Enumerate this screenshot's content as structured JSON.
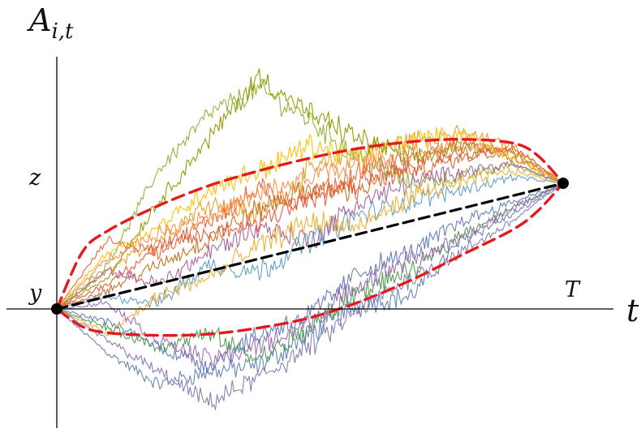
{
  "chart_data": {
    "type": "line",
    "title": "",
    "xlabel": "t",
    "ylabel": "A",
    "ylabel_subscript": "i,t",
    "tick_labels": {
      "x_end": "T",
      "y_start": "y",
      "y_end": "z"
    },
    "xlim": [
      0,
      1
    ],
    "ylim": [
      -0.85,
      2.0
    ],
    "grid": false,
    "legend": "none",
    "start_point": {
      "t": 0,
      "value": 0
    },
    "end_point": {
      "t": 1,
      "value": 1
    },
    "mean_line": {
      "x": [
        0,
        1
      ],
      "y": [
        0,
        1
      ],
      "color": "#000000",
      "style": "dashed"
    },
    "envelope": {
      "color": "#e41a1c",
      "style": "dashed",
      "x": [
        0.0,
        0.05,
        0.1,
        0.2,
        0.3,
        0.4,
        0.5,
        0.6,
        0.7,
        0.8,
        0.9,
        0.95,
        1.0
      ],
      "upper": [
        0.0,
        0.45,
        0.62,
        0.82,
        0.98,
        1.1,
        1.2,
        1.28,
        1.33,
        1.35,
        1.32,
        1.22,
        1.0
      ],
      "lower": [
        0.0,
        -0.14,
        -0.19,
        -0.21,
        -0.2,
        -0.15,
        -0.07,
        0.06,
        0.23,
        0.43,
        0.63,
        0.78,
        1.0
      ]
    },
    "series": [
      {
        "color": "#5e81b5",
        "x": [
          0,
          0.1,
          0.2,
          0.3,
          0.4,
          0.5,
          0.6,
          0.7,
          0.8,
          0.9,
          1
        ],
        "y": [
          0,
          -0.35,
          -0.6,
          -0.5,
          -0.45,
          -0.2,
          0.05,
          0.1,
          0.55,
          0.75,
          1
        ]
      },
      {
        "color": "#e19c24",
        "x": [
          0,
          0.1,
          0.2,
          0.3,
          0.4,
          0.5,
          0.6,
          0.7,
          0.8,
          0.9,
          1
        ],
        "y": [
          0,
          0.3,
          0.55,
          0.85,
          0.75,
          1.1,
          1.25,
          1.35,
          1.4,
          1.3,
          1
        ]
      },
      {
        "color": "#8fb032",
        "x": [
          0,
          0.1,
          0.2,
          0.3,
          0.4,
          0.5,
          0.6,
          0.7,
          0.8,
          0.9,
          1
        ],
        "y": [
          0,
          0.35,
          1.1,
          1.55,
          1.75,
          1.5,
          1.2,
          1.0,
          1.05,
          1.15,
          1
        ]
      },
      {
        "color": "#eb6235",
        "x": [
          0,
          0.1,
          0.2,
          0.3,
          0.4,
          0.5,
          0.6,
          0.7,
          0.8,
          0.9,
          1
        ],
        "y": [
          0,
          0.55,
          0.45,
          0.7,
          0.95,
          0.85,
          1.1,
          1.2,
          1.3,
          1.25,
          1
        ]
      },
      {
        "color": "#8778b3",
        "x": [
          0,
          0.1,
          0.2,
          0.3,
          0.4,
          0.5,
          0.6,
          0.7,
          0.8,
          0.9,
          1
        ],
        "y": [
          0,
          -0.25,
          -0.5,
          -0.75,
          -0.55,
          -0.3,
          0.0,
          0.25,
          0.45,
          0.7,
          1
        ]
      },
      {
        "color": "#c56e1a",
        "x": [
          0,
          0.1,
          0.2,
          0.3,
          0.4,
          0.5,
          0.6,
          0.7,
          0.8,
          0.9,
          1
        ],
        "y": [
          0,
          0.15,
          0.35,
          0.55,
          0.8,
          0.95,
          0.95,
          1.15,
          1.25,
          1.2,
          1
        ]
      },
      {
        "color": "#5d9ec7",
        "x": [
          0,
          0.1,
          0.2,
          0.3,
          0.4,
          0.5,
          0.6,
          0.7,
          0.8,
          0.9,
          1
        ],
        "y": [
          0,
          0.1,
          0.05,
          0.35,
          0.3,
          0.55,
          0.75,
          0.85,
          0.95,
          1.05,
          1
        ]
      },
      {
        "color": "#ffbf00",
        "x": [
          0,
          0.1,
          0.2,
          0.3,
          0.4,
          0.5,
          0.6,
          0.7,
          0.8,
          0.9,
          1
        ],
        "y": [
          0,
          0.45,
          0.65,
          0.95,
          1.1,
          1.3,
          1.2,
          1.35,
          1.4,
          1.2,
          1
        ]
      },
      {
        "color": "#a5609d",
        "x": [
          0,
          0.1,
          0.2,
          0.3,
          0.4,
          0.5,
          0.6,
          0.7,
          0.8,
          0.9,
          1
        ],
        "y": [
          0,
          0.3,
          0.2,
          0.45,
          0.65,
          0.55,
          0.85,
          1.0,
          1.1,
          1.15,
          1
        ]
      },
      {
        "color": "#929600",
        "x": [
          0,
          0.1,
          0.2,
          0.3,
          0.4,
          0.5,
          0.6,
          0.7,
          0.8,
          0.9,
          1
        ],
        "y": [
          0,
          0.25,
          0.85,
          1.35,
          1.85,
          1.55,
          1.35,
          1.2,
          1.3,
          1.25,
          1
        ]
      },
      {
        "color": "#e95536",
        "x": [
          0,
          0.1,
          0.2,
          0.3,
          0.4,
          0.5,
          0.6,
          0.7,
          0.8,
          0.9,
          1
        ],
        "y": [
          0,
          0.2,
          0.5,
          0.6,
          0.7,
          0.9,
          1.0,
          1.1,
          1.2,
          1.3,
          1
        ]
      },
      {
        "color": "#6279b8",
        "x": [
          0,
          0.1,
          0.2,
          0.3,
          0.4,
          0.5,
          0.6,
          0.7,
          0.8,
          0.9,
          1
        ],
        "y": [
          0,
          -0.1,
          -0.3,
          -0.45,
          -0.2,
          -0.05,
          0.3,
          0.45,
          0.7,
          0.85,
          1
        ]
      },
      {
        "color": "#ecae2d",
        "x": [
          0,
          0.1,
          0.2,
          0.3,
          0.4,
          0.5,
          0.6,
          0.7,
          0.8,
          0.9,
          1
        ],
        "y": [
          0,
          -0.2,
          0.1,
          0.25,
          0.5,
          0.7,
          0.65,
          0.9,
          1.0,
          1.1,
          1
        ]
      },
      {
        "color": "#4e9a4f",
        "x": [
          0,
          0.1,
          0.2,
          0.3,
          0.4,
          0.5,
          0.6,
          0.7,
          0.8,
          0.9,
          1
        ],
        "y": [
          0,
          -0.15,
          -0.3,
          -0.2,
          -0.4,
          -0.15,
          0.15,
          0.3,
          0.6,
          0.8,
          1
        ]
      },
      {
        "color": "#9b6ab0",
        "x": [
          0,
          0.1,
          0.2,
          0.3,
          0.4,
          0.5,
          0.6,
          0.7,
          0.8,
          0.9,
          1
        ],
        "y": [
          0,
          0.05,
          -0.25,
          -0.4,
          -0.3,
          -0.1,
          0.2,
          0.4,
          0.55,
          0.8,
          1
        ]
      },
      {
        "color": "#ff8c42",
        "x": [
          0,
          0.1,
          0.2,
          0.3,
          0.4,
          0.5,
          0.6,
          0.7,
          0.8,
          0.9,
          1
        ],
        "y": [
          0,
          0.4,
          0.6,
          0.75,
          0.9,
          1.05,
          1.15,
          1.25,
          1.3,
          1.25,
          1
        ]
      }
    ]
  }
}
